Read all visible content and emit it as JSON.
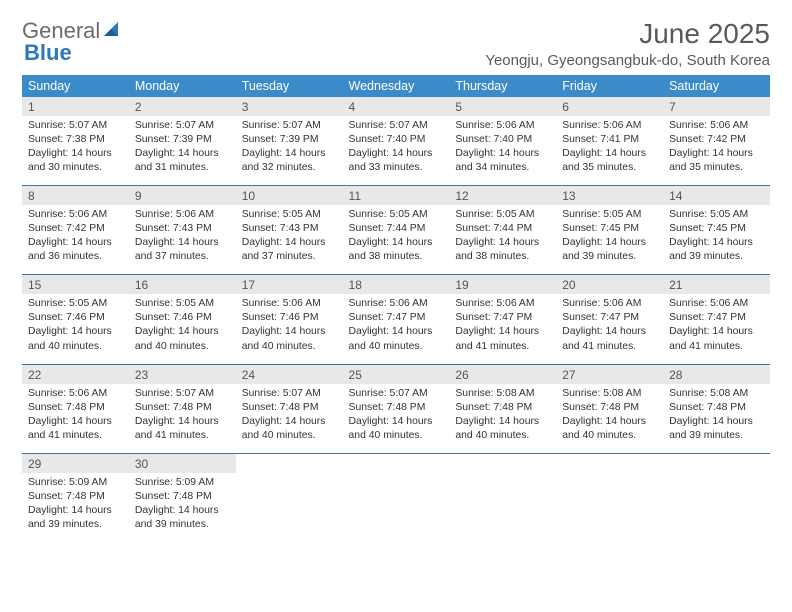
{
  "brand": {
    "part1": "General",
    "part2": "Blue"
  },
  "title": "June 2025",
  "location": "Yeongju, Gyeongsangbuk-do, South Korea",
  "colors": {
    "header_bg": "#3b8bc9",
    "header_text": "#ffffff",
    "daynum_bg": "#e8e8e8",
    "rule": "#3b76a8",
    "brand_gray": "#6c6c6c",
    "brand_blue": "#2f78b7",
    "text": "#333333",
    "title_gray": "#5a5a5a"
  },
  "dow": [
    "Sunday",
    "Monday",
    "Tuesday",
    "Wednesday",
    "Thursday",
    "Friday",
    "Saturday"
  ],
  "weeks": [
    [
      {
        "n": "1",
        "sr": "5:07 AM",
        "ss": "7:38 PM",
        "dl": "14 hours and 30 minutes."
      },
      {
        "n": "2",
        "sr": "5:07 AM",
        "ss": "7:39 PM",
        "dl": "14 hours and 31 minutes."
      },
      {
        "n": "3",
        "sr": "5:07 AM",
        "ss": "7:39 PM",
        "dl": "14 hours and 32 minutes."
      },
      {
        "n": "4",
        "sr": "5:07 AM",
        "ss": "7:40 PM",
        "dl": "14 hours and 33 minutes."
      },
      {
        "n": "5",
        "sr": "5:06 AM",
        "ss": "7:40 PM",
        "dl": "14 hours and 34 minutes."
      },
      {
        "n": "6",
        "sr": "5:06 AM",
        "ss": "7:41 PM",
        "dl": "14 hours and 35 minutes."
      },
      {
        "n": "7",
        "sr": "5:06 AM",
        "ss": "7:42 PM",
        "dl": "14 hours and 35 minutes."
      }
    ],
    [
      {
        "n": "8",
        "sr": "5:06 AM",
        "ss": "7:42 PM",
        "dl": "14 hours and 36 minutes."
      },
      {
        "n": "9",
        "sr": "5:06 AM",
        "ss": "7:43 PM",
        "dl": "14 hours and 37 minutes."
      },
      {
        "n": "10",
        "sr": "5:05 AM",
        "ss": "7:43 PM",
        "dl": "14 hours and 37 minutes."
      },
      {
        "n": "11",
        "sr": "5:05 AM",
        "ss": "7:44 PM",
        "dl": "14 hours and 38 minutes."
      },
      {
        "n": "12",
        "sr": "5:05 AM",
        "ss": "7:44 PM",
        "dl": "14 hours and 38 minutes."
      },
      {
        "n": "13",
        "sr": "5:05 AM",
        "ss": "7:45 PM",
        "dl": "14 hours and 39 minutes."
      },
      {
        "n": "14",
        "sr": "5:05 AM",
        "ss": "7:45 PM",
        "dl": "14 hours and 39 minutes."
      }
    ],
    [
      {
        "n": "15",
        "sr": "5:05 AM",
        "ss": "7:46 PM",
        "dl": "14 hours and 40 minutes."
      },
      {
        "n": "16",
        "sr": "5:05 AM",
        "ss": "7:46 PM",
        "dl": "14 hours and 40 minutes."
      },
      {
        "n": "17",
        "sr": "5:06 AM",
        "ss": "7:46 PM",
        "dl": "14 hours and 40 minutes."
      },
      {
        "n": "18",
        "sr": "5:06 AM",
        "ss": "7:47 PM",
        "dl": "14 hours and 40 minutes."
      },
      {
        "n": "19",
        "sr": "5:06 AM",
        "ss": "7:47 PM",
        "dl": "14 hours and 41 minutes."
      },
      {
        "n": "20",
        "sr": "5:06 AM",
        "ss": "7:47 PM",
        "dl": "14 hours and 41 minutes."
      },
      {
        "n": "21",
        "sr": "5:06 AM",
        "ss": "7:47 PM",
        "dl": "14 hours and 41 minutes."
      }
    ],
    [
      {
        "n": "22",
        "sr": "5:06 AM",
        "ss": "7:48 PM",
        "dl": "14 hours and 41 minutes."
      },
      {
        "n": "23",
        "sr": "5:07 AM",
        "ss": "7:48 PM",
        "dl": "14 hours and 41 minutes."
      },
      {
        "n": "24",
        "sr": "5:07 AM",
        "ss": "7:48 PM",
        "dl": "14 hours and 40 minutes."
      },
      {
        "n": "25",
        "sr": "5:07 AM",
        "ss": "7:48 PM",
        "dl": "14 hours and 40 minutes."
      },
      {
        "n": "26",
        "sr": "5:08 AM",
        "ss": "7:48 PM",
        "dl": "14 hours and 40 minutes."
      },
      {
        "n": "27",
        "sr": "5:08 AM",
        "ss": "7:48 PM",
        "dl": "14 hours and 40 minutes."
      },
      {
        "n": "28",
        "sr": "5:08 AM",
        "ss": "7:48 PM",
        "dl": "14 hours and 39 minutes."
      }
    ],
    [
      {
        "n": "29",
        "sr": "5:09 AM",
        "ss": "7:48 PM",
        "dl": "14 hours and 39 minutes."
      },
      {
        "n": "30",
        "sr": "5:09 AM",
        "ss": "7:48 PM",
        "dl": "14 hours and 39 minutes."
      },
      null,
      null,
      null,
      null,
      null
    ]
  ],
  "labels": {
    "sunrise": "Sunrise: ",
    "sunset": "Sunset: ",
    "daylight": "Daylight: "
  }
}
